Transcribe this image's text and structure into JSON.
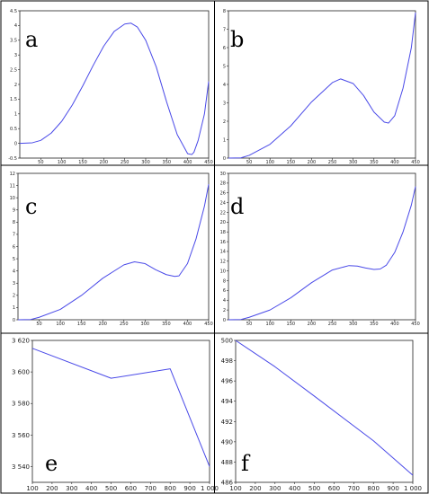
{
  "chart_data": [
    {
      "type": "line",
      "panel_label": "a",
      "xlim": [
        0,
        450
      ],
      "ylim": [
        -0.5,
        4.5
      ],
      "xticks": [
        50,
        100,
        150,
        200,
        250,
        300,
        350,
        400,
        450
      ],
      "yticks": [
        -0.5,
        0,
        0.5,
        1,
        1.5,
        2,
        2.5,
        3,
        3.5,
        4,
        4.5
      ],
      "grid": false,
      "series": [
        {
          "color": "#4a4ae8",
          "x": [
            0,
            30,
            50,
            75,
            100,
            125,
            150,
            175,
            200,
            225,
            250,
            265,
            280,
            300,
            325,
            350,
            375,
            400,
            410,
            415,
            425,
            440,
            450
          ],
          "y": [
            0.0,
            0.02,
            0.1,
            0.35,
            0.75,
            1.3,
            1.95,
            2.65,
            3.3,
            3.8,
            4.05,
            4.08,
            3.95,
            3.5,
            2.6,
            1.4,
            0.3,
            -0.35,
            -0.38,
            -0.3,
            0.1,
            1.0,
            2.1
          ]
        }
      ]
    },
    {
      "type": "line",
      "panel_label": "b",
      "xlim": [
        0,
        450
      ],
      "ylim": [
        0,
        8
      ],
      "xticks": [
        50,
        100,
        150,
        200,
        250,
        300,
        350,
        400,
        450
      ],
      "yticks": [
        0,
        1,
        2,
        3,
        4,
        5,
        6,
        7,
        8
      ],
      "grid": false,
      "series": [
        {
          "color": "#4a4ae8",
          "x": [
            0,
            30,
            50,
            100,
            150,
            200,
            250,
            270,
            300,
            325,
            350,
            375,
            385,
            400,
            420,
            440,
            450
          ],
          "y": [
            0.0,
            0.01,
            0.15,
            0.75,
            1.75,
            3.05,
            4.1,
            4.3,
            4.05,
            3.4,
            2.5,
            1.95,
            1.9,
            2.3,
            3.8,
            6.0,
            7.9
          ]
        }
      ]
    },
    {
      "type": "line",
      "panel_label": "c",
      "xlim": [
        0,
        450
      ],
      "ylim": [
        0,
        12
      ],
      "xticks": [
        50,
        100,
        150,
        200,
        250,
        300,
        350,
        400,
        450
      ],
      "yticks": [
        0,
        1,
        2,
        3,
        4,
        5,
        6,
        7,
        8,
        9,
        10,
        11,
        12
      ],
      "grid": false,
      "series": [
        {
          "color": "#4a4ae8",
          "x": [
            0,
            30,
            50,
            100,
            150,
            200,
            250,
            275,
            300,
            325,
            350,
            370,
            380,
            400,
            420,
            440,
            450
          ],
          "y": [
            0.0,
            0.02,
            0.2,
            0.85,
            2.0,
            3.4,
            4.5,
            4.75,
            4.6,
            4.1,
            3.7,
            3.55,
            3.6,
            4.6,
            6.6,
            9.3,
            11.1
          ]
        }
      ]
    },
    {
      "type": "line",
      "panel_label": "d",
      "xlim": [
        0,
        450
      ],
      "ylim": [
        0,
        30
      ],
      "xticks": [
        50,
        100,
        150,
        200,
        250,
        300,
        350,
        400,
        450
      ],
      "yticks": [
        0,
        2,
        4,
        6,
        8,
        10,
        12,
        14,
        16,
        18,
        20,
        22,
        24,
        26,
        28,
        30
      ],
      "grid": false,
      "series": [
        {
          "color": "#4a4ae8",
          "x": [
            0,
            30,
            50,
            100,
            150,
            200,
            250,
            290,
            310,
            330,
            350,
            365,
            380,
            400,
            420,
            440,
            450
          ],
          "y": [
            0.0,
            0.05,
            0.5,
            2.0,
            4.5,
            7.6,
            10.2,
            11.1,
            11.0,
            10.6,
            10.3,
            10.4,
            11.2,
            13.8,
            18.0,
            23.5,
            27.3
          ]
        }
      ]
    },
    {
      "type": "line",
      "panel_label": "e",
      "xlim": [
        100,
        1000
      ],
      "ylim": [
        3530,
        3620
      ],
      "xticks": [
        100,
        200,
        300,
        400,
        500,
        600,
        700,
        800,
        900,
        1000
      ],
      "yticks": [
        3540,
        3560,
        3580,
        3600,
        3620
      ],
      "xtick_labels": [
        "100",
        "200",
        "300",
        "400",
        "500",
        "600",
        "700",
        "800",
        "900",
        "1 000"
      ],
      "ytick_labels": [
        "3 540",
        "3 560",
        "3 580",
        "3 600",
        "3 620"
      ],
      "grid": false,
      "series": [
        {
          "color": "#4a4ae8",
          "x": [
            100,
            500,
            800,
            1000
          ],
          "y": [
            3615,
            3596,
            3602,
            3540
          ]
        }
      ]
    },
    {
      "type": "line",
      "panel_label": "f",
      "xlim": [
        100,
        1000
      ],
      "ylim": [
        486,
        500
      ],
      "xticks": [
        100,
        200,
        300,
        400,
        500,
        600,
        700,
        800,
        900,
        1000
      ],
      "yticks": [
        486,
        488,
        490,
        492,
        494,
        496,
        498,
        500
      ],
      "xtick_labels": [
        "100",
        "200",
        "300",
        "400",
        "500",
        "600",
        "700",
        "800",
        "900",
        "1 000"
      ],
      "ytick_labels": [
        "486",
        "488",
        "490",
        "492",
        "494",
        "496",
        "498",
        "500"
      ],
      "grid": false,
      "series": [
        {
          "color": "#4a4ae8",
          "x": [
            100,
            300,
            500,
            800,
            1000
          ],
          "y": [
            500,
            497.4,
            494.5,
            490.1,
            486.7
          ]
        }
      ]
    }
  ]
}
